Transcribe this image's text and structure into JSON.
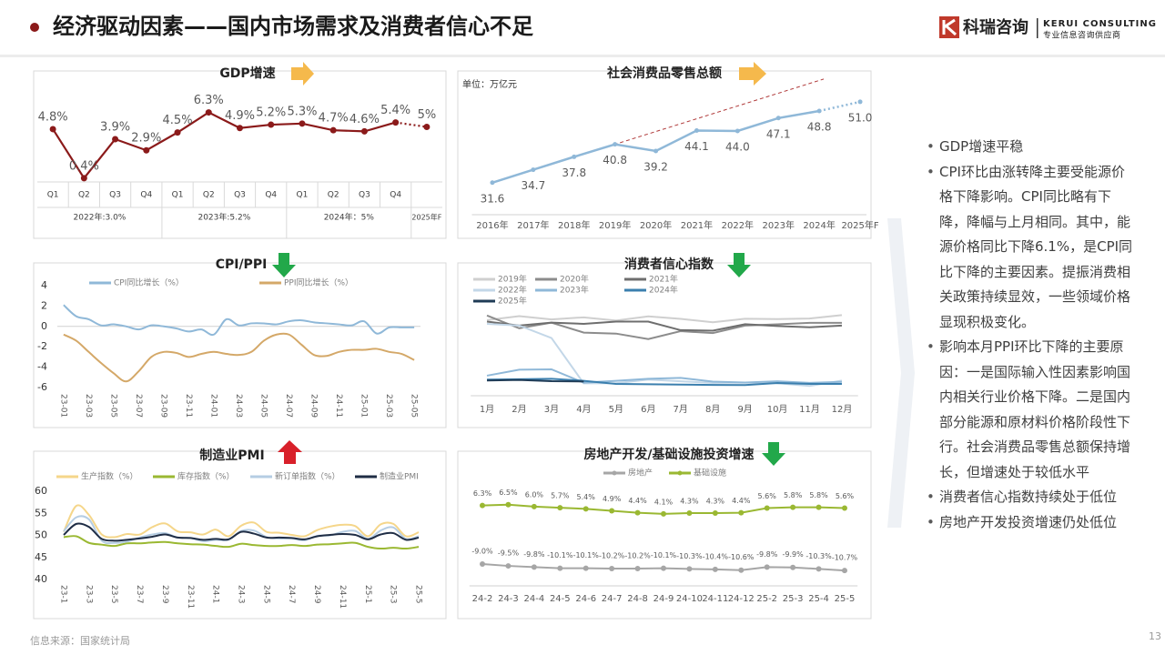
{
  "header": {
    "title": "经济驱动因素——国内市场需求及消费者信心不足"
  },
  "logo": {
    "name": "科瑞咨询",
    "english": "KERUI CONSULTING",
    "tagline": "专业信息咨询供应商"
  },
  "chart_data": [
    {
      "type": "line",
      "title": "GDP增速",
      "groups": [
        {
          "label": "2022年:3.0%",
          "categories": [
            "Q1",
            "Q2",
            "Q3",
            "Q4"
          ]
        },
        {
          "label": "2023年:5.2%",
          "categories": [
            "Q1",
            "Q2",
            "Q3",
            "Q4"
          ]
        },
        {
          "label": "2024年：5%",
          "categories": [
            "Q1",
            "Q2",
            "Q3",
            "Q4"
          ]
        },
        {
          "label": "2025年F",
          "categories": [
            null
          ]
        }
      ],
      "series": [
        {
          "color": "#8b1a1a",
          "values": [
            4.8,
            0.4,
            3.9,
            2.9,
            4.5,
            6.3,
            4.9,
            5.2,
            5.3,
            4.7,
            4.6,
            5.4,
            5
          ],
          "value_labels": [
            "4.8%",
            "0.4%",
            "3.9%",
            "2.9%",
            "4.5%",
            "6.3%",
            "4.9%",
            "5.2%",
            "5.3%",
            "4.7%",
            "4.6%",
            "5.4%",
            "5%"
          ]
        }
      ],
      "ylim": [
        -1,
        7
      ],
      "forecast_points": 1,
      "markers": true
    },
    {
      "type": "line",
      "title": "社会消费品零售总额",
      "unit": "单位：万亿元",
      "categories": [
        "2016年",
        "2017年",
        "2018年",
        "2019年",
        "2020年",
        "2021年",
        "2022年",
        "2023年",
        "2024年",
        "2025年F"
      ],
      "series": [
        {
          "color": "#8fb8d8",
          "values": [
            31.6,
            34.7,
            37.8,
            40.8,
            39.2,
            44.1,
            44.0,
            47.1,
            48.8,
            51.0
          ],
          "value_labels": [
            "31.6",
            "34.7",
            "37.8",
            "40.8",
            "39.2",
            "44.1",
            "44.0",
            "47.1",
            "48.8",
            "51.0"
          ]
        }
      ],
      "ylim": [
        25,
        55
      ],
      "forecast_points": 1,
      "markers": true,
      "trend_color": "#b03a3a"
    },
    {
      "type": "line",
      "title": "CPI/PPI",
      "categories": [
        "23-01",
        null,
        "23-03",
        null,
        "23-05",
        null,
        "23-07",
        null,
        "23-09",
        null,
        "23-11",
        null,
        "24-01",
        null,
        "24-03",
        null,
        "24-05",
        null,
        "24-07",
        null,
        "24-09",
        null,
        "24-11",
        null,
        "25-01",
        null,
        "25-03",
        null,
        "25-05"
      ],
      "series": [
        {
          "name": "CPI同比增长（%）",
          "color": "#8fb8d8",
          "values": [
            2.1,
            1.0,
            0.7,
            0.1,
            0.2,
            0.0,
            -0.3,
            0.1,
            0.0,
            -0.2,
            -0.5,
            -0.3,
            -0.8,
            0.7,
            0.1,
            0.3,
            0.3,
            0.2,
            0.5,
            0.6,
            0.4,
            0.3,
            0.2,
            0.1,
            0.5,
            -0.7,
            -0.1,
            -0.1,
            -0.1
          ]
        },
        {
          "name": "PPI同比增长（%）",
          "color": "#d4a868",
          "values": [
            -0.8,
            -1.4,
            -2.5,
            -3.6,
            -4.6,
            -5.4,
            -4.4,
            -3.0,
            -2.5,
            -2.6,
            -3.0,
            -2.7,
            -2.5,
            -2.7,
            -2.8,
            -2.5,
            -1.4,
            -0.8,
            -0.8,
            -1.8,
            -2.8,
            -2.9,
            -2.5,
            -2.3,
            -2.3,
            -2.2,
            -2.5,
            -2.7,
            -3.3
          ]
        }
      ],
      "ylim": [
        -6,
        4
      ],
      "yticks": [
        4,
        2,
        0,
        -2,
        -4,
        -6
      ],
      "smooth": true
    },
    {
      "type": "line",
      "title": "消费者信心指数",
      "categories": [
        "1月",
        "2月",
        "3月",
        "4月",
        "5月",
        "6月",
        "7月",
        "8月",
        "9月",
        "10月",
        "11月",
        "12月"
      ],
      "series": [
        {
          "name": "2019年",
          "color": "#cfcfcf",
          "values": [
            123.7,
            126.0,
            124.1,
            125.3,
            123.4,
            125.9,
            124.4,
            122.4,
            124.5,
            124.3,
            124.6,
            126.6
          ]
        },
        {
          "name": "2020年",
          "color": "#8c8c8c",
          "values": [
            126.4,
            118.9,
            122.2,
            116.4,
            115.8,
            112.6,
            117.2,
            116.1,
            120.5,
            121.2,
            122.1,
            122.1
          ]
        },
        {
          "name": "2021年",
          "color": "#6e6e6e",
          "values": [
            122.8,
            120.5,
            122.2,
            121.5,
            122.8,
            122.8,
            117.8,
            117.5,
            121.3,
            120.2,
            119.5,
            120.5
          ]
        },
        {
          "name": "2022年",
          "color": "#c3d7e8",
          "values": [
            121.5,
            120.5,
            113.2,
            86.7,
            86.8,
            88.9,
            87.9,
            87.0,
            87.2,
            86.8,
            85.2,
            88.3
          ]
        },
        {
          "name": "2023年",
          "color": "#8fb8d8",
          "values": [
            91.2,
            94.7,
            94.9,
            87.1,
            88.2,
            89.4,
            89.9,
            87.7,
            87.2,
            87.9,
            87.0,
            87.6
          ]
        },
        {
          "name": "2024年",
          "color": "#3b7fae",
          "values": [
            88.9,
            89.1,
            89.4,
            88.2,
            86.4,
            86.2,
            86.0,
            85.8,
            85.7,
            86.9,
            86.4,
            86.4
          ]
        },
        {
          "name": "2025年",
          "color": "#1f3b56",
          "values": [
            88.4,
            88.7,
            88.0,
            87.8,
            null,
            null,
            null,
            null,
            null,
            null,
            null,
            null
          ]
        }
      ],
      "ylim": [
        80,
        130
      ]
    },
    {
      "type": "line",
      "title": "制造业PMI",
      "categories": [
        "23-1",
        null,
        "23-3",
        null,
        "23-5",
        null,
        "23-7",
        null,
        "23-9",
        null,
        "23-11",
        null,
        "24-1",
        null,
        "24-3",
        null,
        "24-5",
        null,
        "24-7",
        null,
        "24-9",
        null,
        "24-11",
        null,
        "25-1",
        null,
        "25-3",
        null,
        "25-5"
      ],
      "series": [
        {
          "name": "生产指数（%）",
          "color": "#f5d68a",
          "values": [
            50.8,
            56.7,
            54.6,
            50.2,
            49.6,
            50.3,
            50.2,
            51.9,
            52.7,
            50.9,
            50.7,
            50.2,
            51.3,
            49.8,
            52.2,
            52.9,
            50.8,
            50.6,
            50.1,
            49.8,
            51.2,
            52.0,
            52.4,
            52.1,
            49.8,
            52.5,
            52.6,
            49.8,
            50.7
          ]
        },
        {
          "name": "库存指数（%）",
          "color": "#9ab832",
          "values": [
            49.6,
            49.8,
            48.3,
            47.9,
            47.6,
            48.2,
            48.2,
            48.4,
            48.5,
            48.2,
            48.0,
            47.9,
            47.6,
            47.4,
            48.1,
            47.8,
            47.6,
            47.6,
            47.8,
            47.6,
            47.9,
            48.0,
            48.2,
            48.3,
            47.4,
            47.0,
            47.2,
            47.0,
            47.4
          ]
        },
        {
          "name": "新订单指数（%）",
          "color": "#b5cde3",
          "values": [
            50.9,
            54.1,
            53.6,
            48.8,
            48.3,
            48.6,
            49.5,
            50.2,
            50.5,
            49.5,
            49.4,
            48.7,
            49.0,
            49.0,
            51.0,
            51.1,
            49.6,
            49.3,
            49.3,
            48.9,
            49.9,
            50.0,
            50.8,
            51.0,
            49.2,
            51.1,
            51.8,
            49.2,
            49.8
          ]
        },
        {
          "name": "制造业PMI",
          "color": "#1f2d45",
          "values": [
            50.1,
            52.6,
            51.9,
            49.2,
            48.8,
            49.0,
            49.3,
            49.7,
            50.2,
            49.5,
            49.4,
            49.0,
            49.2,
            49.1,
            50.8,
            50.4,
            49.5,
            49.5,
            49.4,
            49.1,
            49.8,
            50.1,
            50.3,
            50.1,
            49.1,
            50.2,
            50.5,
            49.0,
            49.5
          ]
        }
      ],
      "ylim": [
        40,
        60
      ],
      "yticks": [
        60,
        55,
        50,
        45,
        40
      ],
      "smooth": true
    },
    {
      "type": "line",
      "title": "房地产开发/基础设施投资增速",
      "categories": [
        "24-2",
        "24-3",
        "24-4",
        "24-5",
        "24-6",
        "24-7",
        "24-8",
        "24-9",
        "24-10",
        "24-11",
        "24-12",
        "25-2",
        "25-3",
        "25-4",
        "25-5"
      ],
      "series": [
        {
          "name": "房地产",
          "color": "#a6a6a6",
          "values": [
            -9.0,
            -9.5,
            -9.8,
            -10.1,
            -10.1,
            -10.2,
            -10.2,
            -10.1,
            -10.3,
            -10.4,
            -10.6,
            -9.8,
            -9.9,
            -10.3,
            -10.7
          ],
          "value_labels": [
            "-9.0%",
            "-9.5%",
            "-9.8%",
            "-10.1%",
            "-10.1%",
            "-10.2%",
            "-10.2%",
            "-10.1%",
            "-10.3%",
            "-10.4%",
            "-10.6%",
            "-9.8%",
            "-9.9%",
            "-10.3%",
            "-10.7%"
          ]
        },
        {
          "name": "基础设施",
          "color": "#9ab832",
          "values": [
            6.3,
            6.5,
            6.0,
            5.7,
            5.4,
            4.9,
            4.4,
            4.1,
            4.3,
            4.3,
            4.4,
            5.6,
            5.8,
            5.8,
            5.6
          ],
          "value_labels": [
            "6.3%",
            "6.5%",
            "6.0%",
            "5.7%",
            "5.4%",
            "4.9%",
            "4.4%",
            "4.1%",
            "4.3%",
            "4.3%",
            "4.4%",
            "5.6%",
            "5.8%",
            "5.8%",
            "5.6%"
          ]
        }
      ],
      "ylim": [
        -14,
        10
      ],
      "markers": true
    }
  ],
  "bullets": [
    "GDP增速平稳",
    "CPI环比由涨转降主要受能源价格下降影响。CPI同比略有下降，降幅与上月相同。其中，能源价格同比下降6.1%，是CPI同比下降的主要因素。提振消费相关政策持续显效，一些领域价格显现积极变化。",
    "影响本月PPI环比下降的主要原因：一是国际输入性因素影响国内相关行业价格下降。二是国内部分能源和原材料价格阶段性下行。社会消费品零售总额保持增长，但增速处于较低水平",
    "消费者信心指数持续处于低位",
    "房地产开发投资增速仍处低位"
  ],
  "source": "信息来源：国家统计局",
  "page_number": 13
}
